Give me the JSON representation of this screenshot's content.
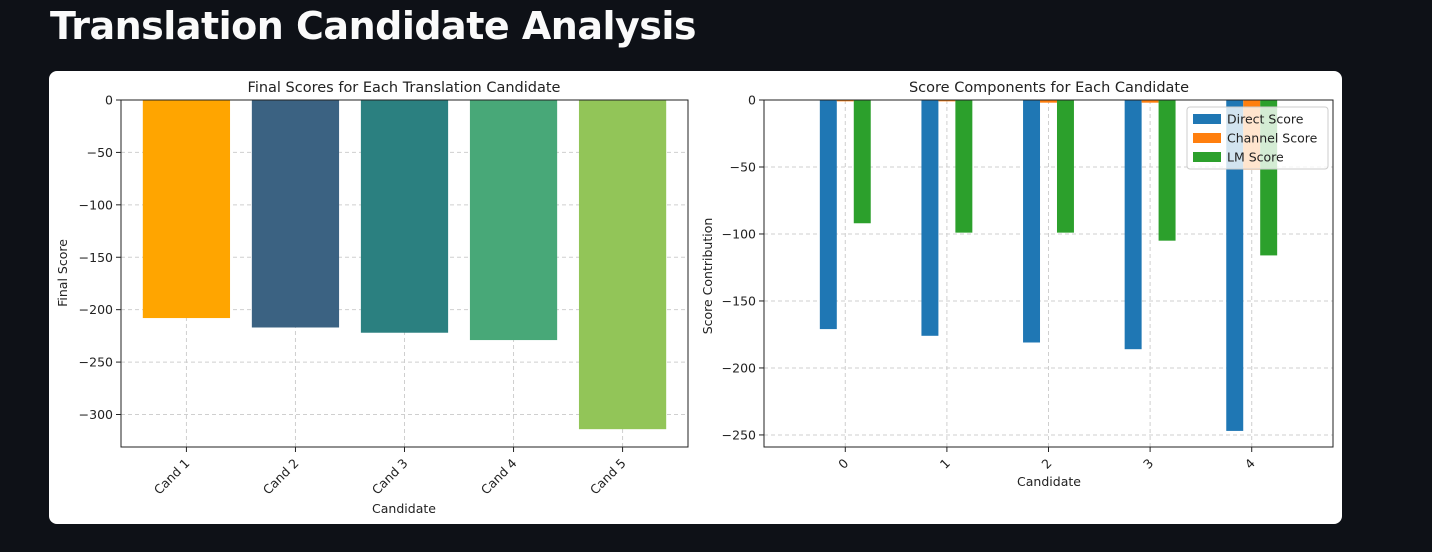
{
  "page": {
    "title": "Translation Candidate Analysis"
  },
  "chart_data": [
    {
      "type": "bar",
      "title": "Final Scores for Each Translation Candidate",
      "xlabel": "Candidate",
      "ylabel": "Final Score",
      "categories": [
        "Cand 1",
        "Cand 2",
        "Cand 3",
        "Cand 4",
        "Cand 5"
      ],
      "values": [
        -208,
        -217,
        -222,
        -229,
        -314
      ],
      "colors": [
        "#ffa500",
        "#3b6282",
        "#2b8080",
        "#48a878",
        "#92c558"
      ],
      "ylim": [
        -331,
        0
      ],
      "yticks": [
        0,
        -50,
        -100,
        -150,
        -200,
        -250,
        -300
      ],
      "yticklabels": [
        "0",
        "−50",
        "−100",
        "−150",
        "−200",
        "−250",
        "−300"
      ],
      "grid": true
    },
    {
      "type": "bar",
      "title": "Score Components for Each Candidate",
      "xlabel": "Candidate",
      "ylabel": "Score Contribution",
      "categories": [
        "0",
        "1",
        "2",
        "3",
        "4"
      ],
      "series": [
        {
          "name": "Direct Score",
          "color": "#1f77b4",
          "values": [
            -171,
            -176,
            -181,
            -186,
            -247
          ]
        },
        {
          "name": "Channel Score",
          "color": "#ff7f0e",
          "values": [
            -1,
            -1,
            -2,
            -2,
            -52
          ]
        },
        {
          "name": "LM Score",
          "color": "#2ca02c",
          "values": [
            -92,
            -99,
            -99,
            -105,
            -116
          ]
        }
      ],
      "ylim": [
        -259,
        0
      ],
      "yticks": [
        0,
        -50,
        -100,
        -150,
        -200,
        -250
      ],
      "yticklabels": [
        "0",
        "−50",
        "−100",
        "−150",
        "−200",
        "−250"
      ],
      "legend": "top-right",
      "grid": true
    }
  ]
}
